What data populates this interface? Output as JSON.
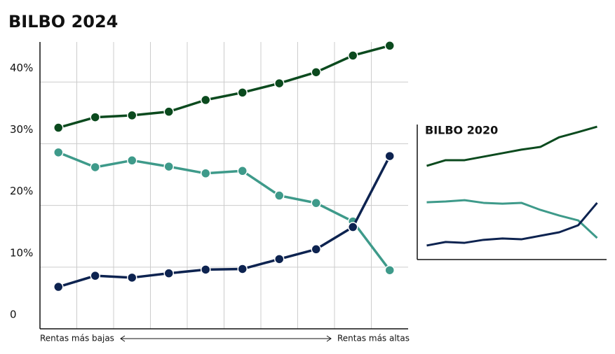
{
  "chart_data": [
    {
      "type": "line",
      "title": "BILBO 2024",
      "categories": [
        null,
        null,
        null,
        null,
        null,
        null,
        null,
        null,
        null,
        null
      ],
      "markers": true,
      "series": [
        {
          "color": "#0b4a1e",
          "values": [
            32.6,
            34.3,
            34.6,
            35.2,
            37.1,
            38.3,
            39.8,
            41.6,
            44.3,
            45.9
          ]
        },
        {
          "color": "#3e9a8a",
          "values": [
            28.6,
            26.2,
            27.3,
            26.3,
            25.2,
            25.6,
            21.6,
            20.4,
            17.4,
            9.5
          ]
        },
        {
          "color": "#0d2350",
          "values": [
            6.8,
            8.6,
            8.3,
            9.0,
            9.6,
            9.7,
            11.3,
            12.9,
            16.5,
            28.0
          ]
        }
      ],
      "ylim": [
        0,
        46.5
      ],
      "yticks": [
        0,
        {
          "value": 10,
          "label": "10%"
        },
        {
          "value": 20,
          "label": "20%"
        },
        {
          "value": 30,
          "label": "30%"
        },
        {
          "value": 40,
          "label": "40%"
        }
      ],
      "grid": true,
      "x_annotations": [
        "Rentas más bajas",
        "Rentas más altas"
      ]
    },
    {
      "type": "line",
      "title": "BILBO 2020",
      "categories": [
        null,
        null,
        null,
        null,
        null,
        null,
        null,
        null,
        null,
        null
      ],
      "markers": false,
      "series": [
        {
          "color": "#0b4a1e",
          "values": [
            34.7,
            36.8,
            36.8,
            38.1,
            39.4,
            40.7,
            41.7,
            45.3,
            47.2,
            49.2
          ]
        },
        {
          "color": "#3e9a8a",
          "values": [
            21.2,
            21.5,
            22.0,
            21.0,
            20.7,
            21.0,
            18.4,
            16.3,
            14.5,
            8.0
          ]
        },
        {
          "color": "#0d2350",
          "values": [
            5.2,
            6.5,
            6.2,
            7.3,
            7.8,
            7.5,
            8.8,
            10.1,
            12.7,
            21.0
          ]
        }
      ],
      "ylim": [
        0,
        50
      ],
      "grid": false
    }
  ]
}
